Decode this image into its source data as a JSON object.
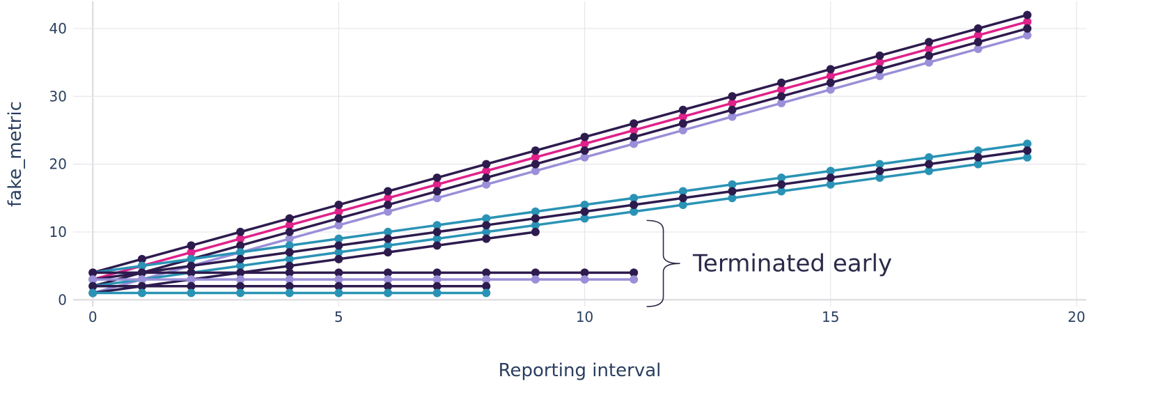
{
  "chart_data": {
    "type": "line",
    "xlabel": "Reporting interval",
    "ylabel": "fake_metric",
    "xlim": [
      -0.4,
      20.2
    ],
    "ylim": [
      -1,
      44
    ],
    "x_ticks": [
      0,
      5,
      10,
      15,
      20
    ],
    "y_ticks": [
      0,
      10,
      20,
      30,
      40
    ],
    "grid": true,
    "legend": "none",
    "annotation": {
      "text": "Terminated early",
      "brace_x": 11.6,
      "brace_y_range": [
        -1,
        11.7
      ],
      "text_x": 12.2,
      "text_y": 5.4
    },
    "colors": {
      "dark": "#2d1b4e",
      "magenta": "#e0218a",
      "lavender": "#9a8fd8",
      "teal": "#2a93b5",
      "grid": "#e6e6ea",
      "zero_line": "#e0e0e4"
    },
    "series": [
      {
        "color": "#e0218a",
        "x_end": 19,
        "intercept": 3,
        "slope": 2.0
      },
      {
        "color": "#9a8fd8",
        "x_end": 19,
        "intercept": 1,
        "slope": 2.0
      },
      {
        "color": "#2d1b4e",
        "x_end": 19,
        "intercept": 4,
        "slope": 2.0
      },
      {
        "color": "#2d1b4e",
        "x_end": 19,
        "intercept": 2,
        "slope": 2.0
      },
      {
        "color": "#2a93b5",
        "x_end": 19,
        "intercept": 4,
        "slope": 1.0
      },
      {
        "color": "#2a93b5",
        "x_end": 19,
        "intercept": 2,
        "slope": 1.0
      },
      {
        "color": "#2d1b4e",
        "x_end": 19,
        "intercept": 3,
        "slope": 1.0
      },
      {
        "color": "#2d1b4e",
        "x_end": 9,
        "intercept": 1,
        "slope": 1.0
      },
      {
        "color": "#2d1b4e",
        "x_end": 11,
        "intercept": 4,
        "slope": 0
      },
      {
        "color": "#9a8fd8",
        "x_end": 11,
        "intercept": 3,
        "slope": 0
      },
      {
        "color": "#2d1b4e",
        "x_end": 8,
        "intercept": 2,
        "slope": 0
      },
      {
        "color": "#2a93b5",
        "x_end": 8,
        "intercept": 1,
        "slope": 0
      }
    ]
  }
}
